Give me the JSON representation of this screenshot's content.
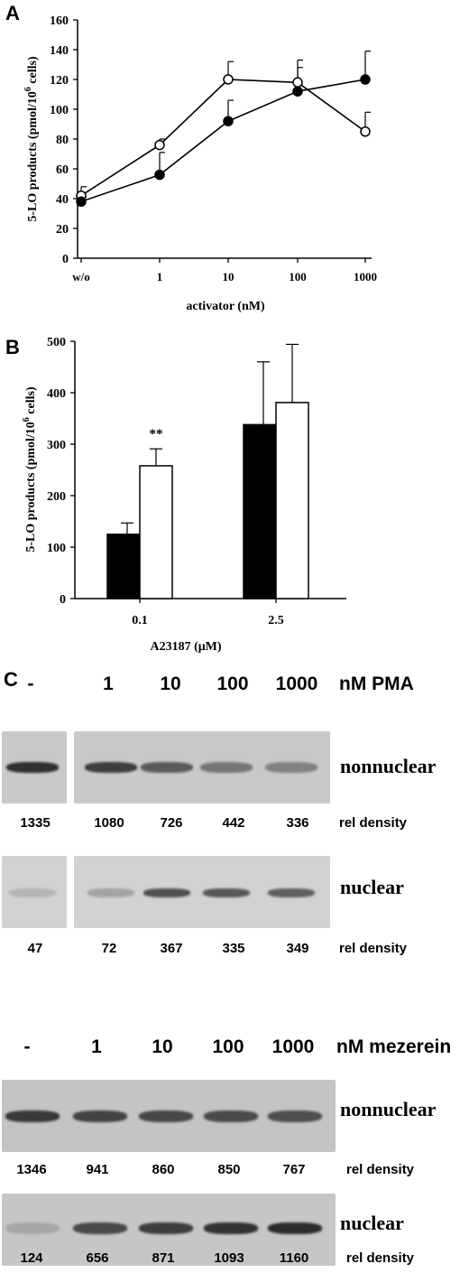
{
  "panels": {
    "a": "A",
    "b": "B",
    "c": "C"
  },
  "chart_data": [
    {
      "type": "line",
      "ylabel": "5-LO products (pmol/10^6 cells)",
      "ylabel_main": "5-LO products (pmol/10",
      "ylabel_sup": "6",
      "ylabel_end": " cells)",
      "xlabel": "activator (nM)",
      "categories": [
        "w/o",
        "1",
        "10",
        "100",
        "1000"
      ],
      "yticks": [
        0,
        20,
        40,
        60,
        80,
        100,
        120,
        140,
        160
      ],
      "ylim": [
        0,
        160
      ],
      "series": [
        {
          "marker": "open-circle",
          "values": [
            42,
            76,
            120,
            118,
            85
          ],
          "errors": [
            6,
            4,
            12,
            15,
            13
          ]
        },
        {
          "marker": "filled-circle",
          "values": [
            38,
            56,
            92,
            112,
            120
          ],
          "errors": [
            3,
            15,
            14,
            16,
            19
          ]
        }
      ]
    },
    {
      "type": "bar",
      "ylabel": "5-LO products (pmol/10^6 cells)",
      "ylabel_main": "5-LO products (pmol/10",
      "ylabel_sup": "6",
      "ylabel_end": " cells)",
      "xlabel": "A23187 (μM)",
      "categories": [
        "0.1",
        "2.5"
      ],
      "yticks": [
        0,
        100,
        200,
        300,
        400,
        500
      ],
      "ylim": [
        0,
        500
      ],
      "series": [
        {
          "fill": "black",
          "values": [
            125,
            338
          ],
          "errors": [
            22,
            122
          ]
        },
        {
          "fill": "white",
          "values": [
            258,
            381
          ],
          "errors": [
            33,
            113
          ]
        }
      ],
      "annotations": [
        {
          "category": "0.1",
          "series": 1,
          "text": "**"
        }
      ]
    }
  ],
  "blot_pma": {
    "lanes": [
      "-",
      "1",
      "10",
      "100",
      "1000"
    ],
    "unit": "nM PMA",
    "nonnuclear": {
      "label": "nonnuclear",
      "values": [
        "1335",
        "1080",
        "726",
        "442",
        "336"
      ],
      "intensity": [
        0.9,
        0.82,
        0.65,
        0.48,
        0.42
      ]
    },
    "nuclear": {
      "label": "nuclear",
      "values": [
        "47",
        "72",
        "367",
        "335",
        "349"
      ],
      "intensity": [
        0.12,
        0.22,
        0.7,
        0.66,
        0.62
      ]
    },
    "rel": "rel density"
  },
  "blot_mezerein": {
    "lanes": [
      "-",
      "1",
      "10",
      "100",
      "1000"
    ],
    "unit": "nM mezerein",
    "nonnuclear": {
      "label": "nonnuclear",
      "values": [
        "1346",
        "941",
        "860",
        "850",
        "767"
      ],
      "intensity": [
        0.85,
        0.78,
        0.76,
        0.74,
        0.72
      ]
    },
    "nuclear": {
      "label": "nuclear",
      "values": [
        "124",
        "656",
        "871",
        "1093",
        "1160"
      ],
      "intensity": [
        0.2,
        0.75,
        0.82,
        0.88,
        0.92
      ]
    },
    "rel": "rel density"
  }
}
